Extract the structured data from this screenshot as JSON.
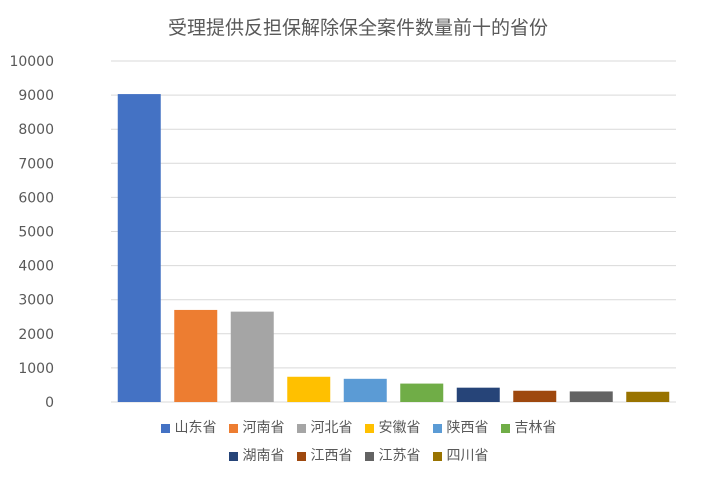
{
  "chart_data": {
    "type": "bar",
    "title": "受理提供反担保解除保全案件数量前十的省份",
    "categories": [
      "山东省",
      "河南省",
      "河北省",
      "安徽省",
      "陕西省",
      "吉林省",
      "湖南省",
      "江西省",
      "江苏省",
      "四川省"
    ],
    "values": [
      9030,
      2700,
      2650,
      740,
      680,
      540,
      420,
      330,
      310,
      300
    ],
    "colors": [
      "#4472c4",
      "#ed7d31",
      "#a5a5a5",
      "#ffc000",
      "#5b9bd5",
      "#70ad47",
      "#264478",
      "#9e480e",
      "#636363",
      "#997300"
    ],
    "ylim": [
      0,
      10000
    ],
    "yticks": [
      0,
      1000,
      2000,
      3000,
      4000,
      5000,
      6000,
      7000,
      8000,
      9000,
      10000
    ],
    "xlabel": "",
    "ylabel": "",
    "grid": true,
    "legend_position": "bottom"
  }
}
